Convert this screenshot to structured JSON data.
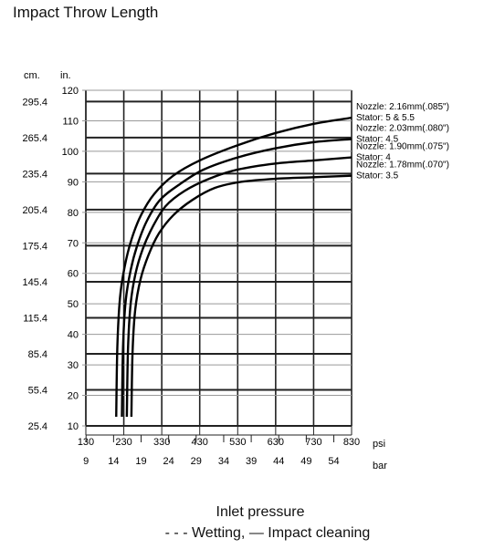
{
  "chart_data": {
    "type": "line",
    "title": "Impact Throw Length",
    "left_axis_label": "in.",
    "cm_axis_label": "cm.",
    "ylim": [
      10,
      120
    ],
    "yticks_in": [
      "10",
      "20",
      "30",
      "40",
      "50",
      "60",
      "70",
      "80",
      "90",
      "100",
      "110",
      "120"
    ],
    "yticks_cm": [
      "25.4",
      "55.4",
      "85.4",
      "115.4",
      "145.4",
      "175.4",
      "205.4",
      "235.4",
      "265.4",
      "295.4"
    ],
    "xlim": [
      130,
      830
    ],
    "psi_label": "psi",
    "psi_ticks": [
      "130",
      "230",
      "330",
      "430",
      "530",
      "630",
      "730",
      "830"
    ],
    "bar_label": "bar",
    "bar_ticks": [
      "9",
      "14",
      "19",
      "24",
      "29",
      "34",
      "39",
      "44",
      "49",
      "54"
    ],
    "series": [
      {
        "nozzle": "Nozzle: 2.16mm(.085\")",
        "stator": "Stator: 5 & 5.5",
        "x": [
          210,
          213,
          220,
          232,
          250,
          275,
          310,
          360,
          430,
          530,
          630,
          730,
          830
        ],
        "y": [
          13,
          36,
          52,
          62,
          71,
          79,
          86,
          92,
          97,
          102,
          106,
          109,
          111
        ]
      },
      {
        "nozzle": "Nozzle: 2.03mm(.080\")",
        "stator": "Stator: 4.5",
        "x": [
          225,
          228,
          235,
          248,
          265,
          290,
          325,
          375,
          440,
          530,
          630,
          730,
          830
        ],
        "y": [
          13,
          36,
          51,
          61,
          69,
          77,
          84,
          89,
          94,
          98,
          101,
          103,
          104
        ]
      },
      {
        "nozzle": "Nozzle: 1.90mm(.075\")",
        "stator": "Stator: 4",
        "x": [
          238,
          241,
          248,
          261,
          280,
          305,
          340,
          390,
          455,
          530,
          630,
          730,
          830
        ],
        "y": [
          13,
          35,
          50,
          60,
          68,
          75,
          82,
          87,
          91,
          94,
          96,
          97,
          98
        ]
      },
      {
        "nozzle": "Nozzle: 1.78mm(.070\")",
        "stator": "Stator: 3.5",
        "x": [
          250,
          253,
          260,
          274,
          295,
          322,
          360,
          410,
          470,
          540,
          630,
          730,
          830
        ],
        "y": [
          13,
          34,
          48,
          58,
          66,
          73,
          79,
          84,
          88,
          90,
          91,
          91.5,
          92
        ]
      }
    ],
    "xlabel": "Inlet pressure",
    "legend_text": "- - - Wetting, — Impact cleaning"
  }
}
